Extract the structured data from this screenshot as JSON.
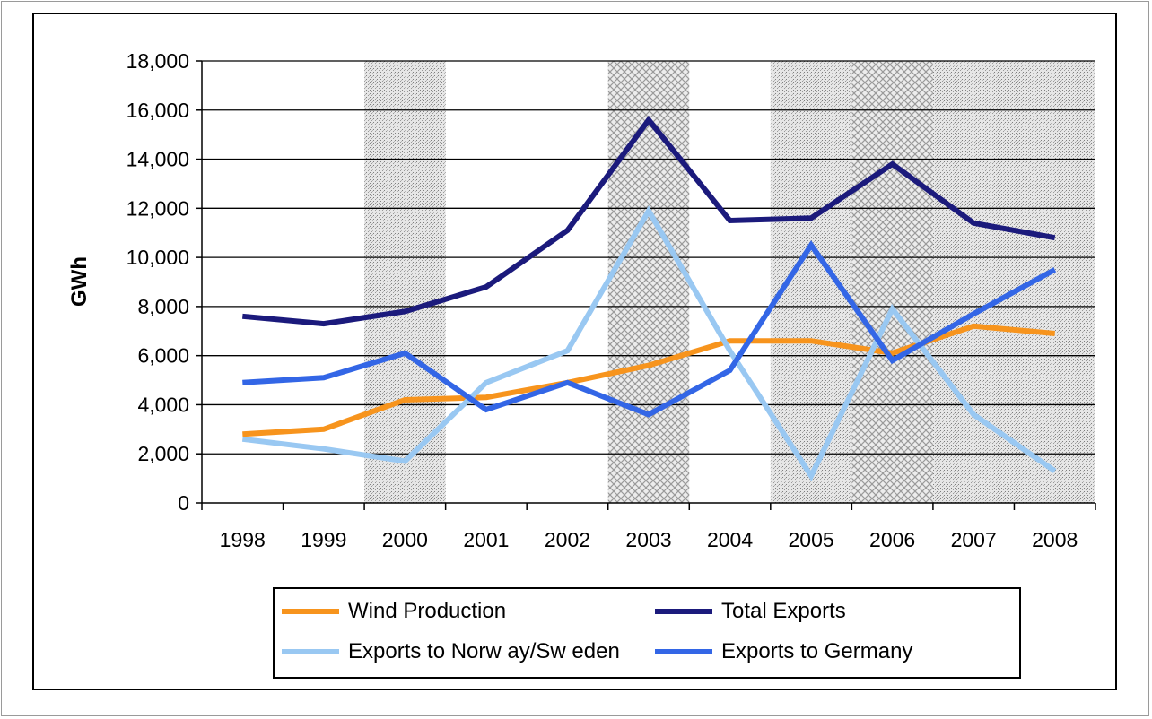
{
  "chart_data": {
    "type": "line",
    "title": "",
    "xlabel": "",
    "ylabel": "GWh",
    "ylim": [
      0,
      18000
    ],
    "ytick_step": 2000,
    "yticks": [
      "0",
      "2,000",
      "4,000",
      "6,000",
      "8,000",
      "10,000",
      "12,000",
      "14,000",
      "16,000",
      "18,000"
    ],
    "grid": "horizontal",
    "legend_position": "bottom",
    "categories": [
      "1998",
      "1999",
      "2000",
      "2001",
      "2002",
      "2003",
      "2004",
      "2005",
      "2006",
      "2007",
      "2008"
    ],
    "shaded_periods": [
      {
        "categories": [
          "2000"
        ],
        "pattern": "dots"
      },
      {
        "categories": [
          "2003"
        ],
        "pattern": "crosshatch"
      },
      {
        "categories": [
          "2005"
        ],
        "pattern": "dots"
      },
      {
        "categories": [
          "2006"
        ],
        "pattern": "crosshatch"
      },
      {
        "categories": [
          "2007",
          "2008"
        ],
        "pattern": "dots"
      }
    ],
    "series": [
      {
        "name": "Wind Production",
        "color": "#f7941d",
        "values": [
          2800,
          3000,
          4200,
          4300,
          4900,
          5600,
          6600,
          6600,
          6100,
          7200,
          6900
        ]
      },
      {
        "name": "Total Exports",
        "color": "#1b1a7c",
        "values": [
          7600,
          7300,
          7800,
          8800,
          11100,
          15600,
          11500,
          11600,
          13800,
          11400,
          10800
        ]
      },
      {
        "name": "Exports to Norway/Sw eden",
        "color": "#99c8f2",
        "values": [
          2600,
          2200,
          1700,
          4900,
          6200,
          11900,
          6200,
          1100,
          7900,
          3600,
          1300
        ]
      },
      {
        "name": "Exports to Germany",
        "color": "#3366e6",
        "values": [
          4900,
          5100,
          6100,
          3800,
          4900,
          3600,
          5400,
          10500,
          5800,
          7700,
          9500
        ]
      }
    ]
  },
  "legend": {
    "wind": "Wind Production",
    "total": "Total Exports",
    "norway": "Exports to Norw ay/Sw eden",
    "germany": "Exports to Germany"
  }
}
